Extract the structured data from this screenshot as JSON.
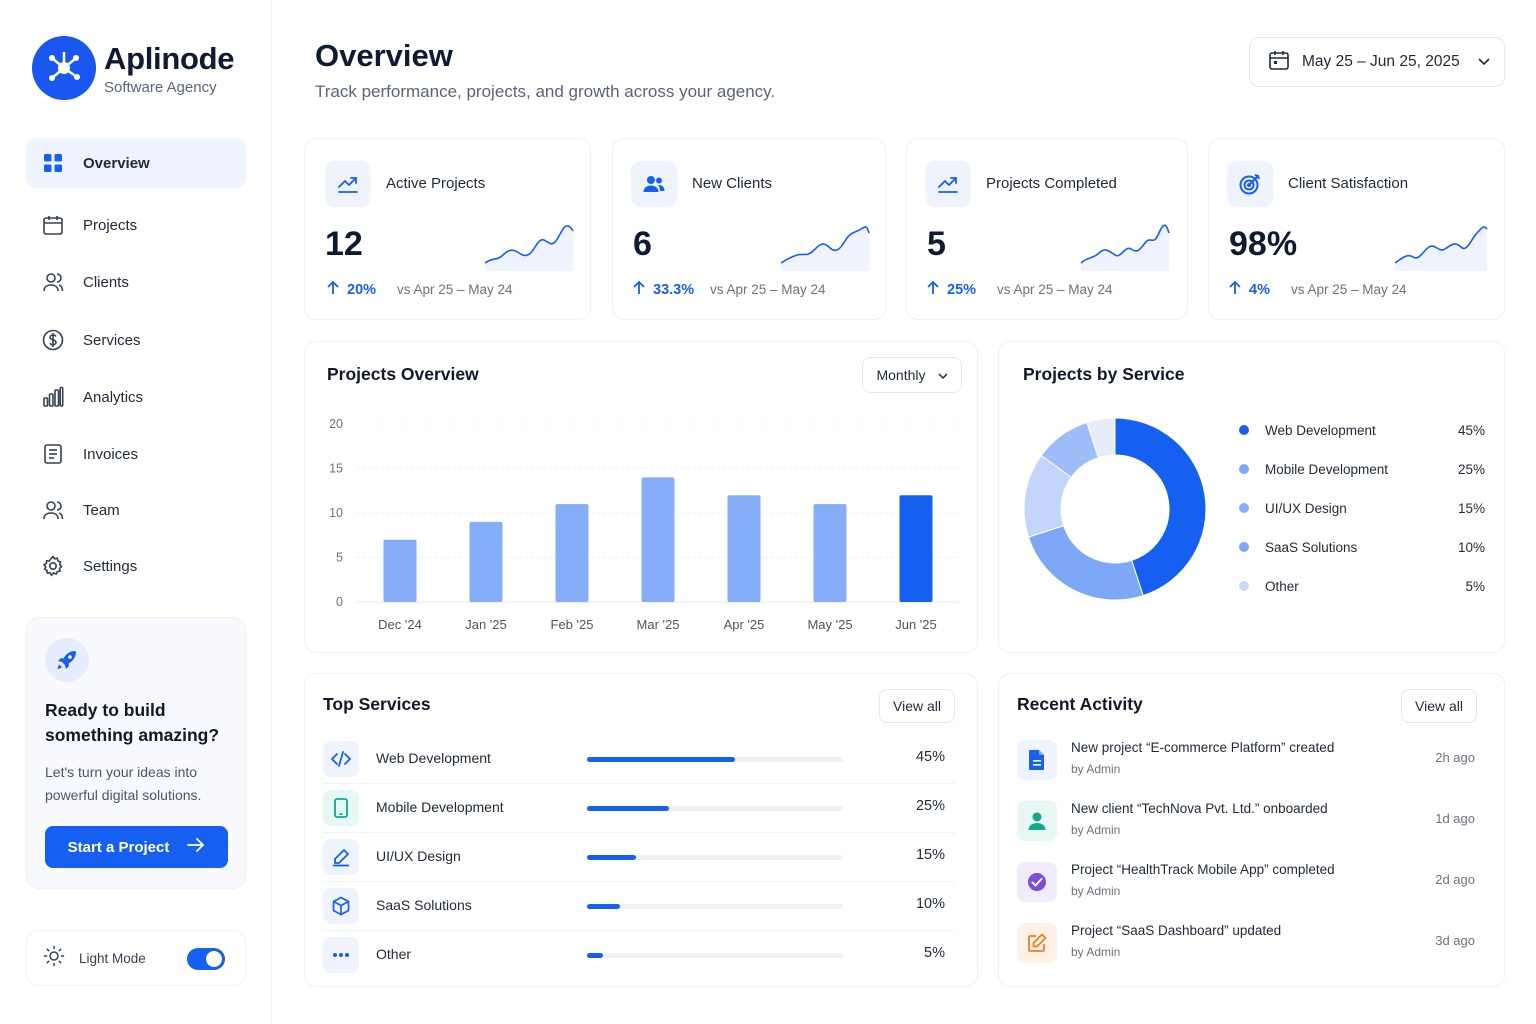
{
  "brand": {
    "name": "Aplinode",
    "subtitle": "Software Agency"
  },
  "nav": [
    {
      "label": "Overview",
      "icon": "grid-icon",
      "active": true
    },
    {
      "label": "Projects",
      "icon": "calendar-icon"
    },
    {
      "label": "Clients",
      "icon": "user-icon"
    },
    {
      "label": "Services",
      "icon": "dollar-icon"
    },
    {
      "label": "Analytics",
      "icon": "bar-chart-icon"
    },
    {
      "label": "Invoices",
      "icon": "document-icon"
    },
    {
      "label": "Team",
      "icon": "users-icon"
    },
    {
      "label": "Settings",
      "icon": "gear-icon"
    }
  ],
  "promo": {
    "title": "Ready to build something amazing?",
    "text": "Let's turn your ideas into powerful digital solutions.",
    "button": "Start a Project"
  },
  "mode": {
    "label": "Light Mode",
    "enabled": true
  },
  "header": {
    "title": "Overview",
    "subtitle": "Track performance, projects, and growth across your agency.",
    "date_range": "May 25 – Jun 25, 2025"
  },
  "kpis": [
    {
      "label": "Active Projects",
      "value": "12",
      "delta": "20%",
      "range": "vs Apr 25 – May 24",
      "icon": "trend-up-icon"
    },
    {
      "label": "New Clients",
      "value": "6",
      "delta": "33.3%",
      "range": "vs Apr 25 – May 24",
      "icon": "users-icon"
    },
    {
      "label": "Projects Completed",
      "value": "5",
      "delta": "25%",
      "range": "vs Apr 25 – May 24",
      "icon": "trend-up-icon"
    },
    {
      "label": "Client Satisfaction",
      "value": "98%",
      "delta": "4%",
      "range": "vs Apr 25 – May 24",
      "icon": "target-icon"
    }
  ],
  "projects_overview": {
    "title": "Projects Overview",
    "period": "Monthly"
  },
  "chart_data": [
    {
      "type": "bar",
      "title": "Projects Overview",
      "categories": [
        "Dec '24",
        "Jan '25",
        "Feb '25",
        "Mar '25",
        "Apr '25",
        "May '25",
        "Jun '25"
      ],
      "values": [
        7,
        9,
        11,
        14,
        12,
        11,
        12
      ],
      "yticks": [
        0,
        5,
        10,
        15,
        20
      ],
      "ylim": [
        0,
        20
      ],
      "grid": true,
      "colors": {
        "bar": "#86adf8",
        "highlight": "#1560f0"
      },
      "highlight_index": 6
    },
    {
      "type": "pie",
      "title": "Projects by Service",
      "labels": [
        "Web Development",
        "Mobile Development",
        "UI/UX Design",
        "SaaS Solutions",
        "Other"
      ],
      "values": [
        45,
        25,
        15,
        10,
        5
      ],
      "value_labels": [
        "45%",
        "25%",
        "15%",
        "10%",
        "5%"
      ],
      "colors": [
        "#1560f0",
        "#7da7f7",
        "#c3d5fb",
        "#9dbdf9",
        "#e8eef8"
      ],
      "legend": "right"
    }
  ],
  "projects_by_service": {
    "title": "Projects by Service"
  },
  "top_services": {
    "title": "Top Services",
    "view_all": "View all",
    "items": [
      {
        "name": "Web Development",
        "value": "45%",
        "pct": 45,
        "icon": "code-icon"
      },
      {
        "name": "Mobile Development",
        "value": "25%",
        "pct": 25,
        "icon": "mobile-icon"
      },
      {
        "name": "UI/UX Design",
        "value": "15%",
        "pct": 15,
        "icon": "pen-icon"
      },
      {
        "name": "SaaS Solutions",
        "value": "10%",
        "pct": 10,
        "icon": "cube-icon"
      },
      {
        "name": "Other",
        "value": "5%",
        "pct": 5,
        "icon": "more-icon"
      }
    ]
  },
  "recent_activity": {
    "title": "Recent Activity",
    "view_all": "View all",
    "items": [
      {
        "title": "New project “E-commerce Platform” created",
        "by": "by Admin",
        "time": "2h ago",
        "icon": "file-icon"
      },
      {
        "title": "New client “TechNova Pvt. Ltd.” onboarded",
        "by": "by Admin",
        "time": "1d ago",
        "icon": "user-icon"
      },
      {
        "title": "Project “HealthTrack Mobile App” completed",
        "by": "by Admin",
        "time": "2d ago",
        "icon": "check-icon"
      },
      {
        "title": "Project “SaaS Dashboard” updated",
        "by": "by Admin",
        "time": "3d ago",
        "icon": "edit-icon"
      }
    ]
  }
}
